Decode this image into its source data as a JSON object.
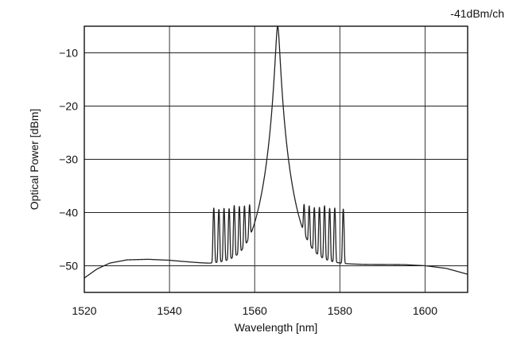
{
  "chart_data": {
    "type": "line",
    "title": "",
    "annotation": "-41dBm/ch",
    "xlabel": "Wavelength [nm]",
    "ylabel": "Optical Power [dBm]",
    "xlim": [
      1520,
      1610
    ],
    "ylim": [
      -55,
      -5
    ],
    "xticks": [
      1520,
      1540,
      1560,
      1580,
      1600
    ],
    "yticks": [
      -10,
      -20,
      -30,
      -40,
      -50
    ],
    "grid": true,
    "line_color": "#222222",
    "series": [
      {
        "name": "",
        "baseline": {
          "x": [
            1520,
            1523,
            1526,
            1530,
            1535,
            1540,
            1545,
            1549.5,
            1560,
            1565,
            1570,
            1580,
            1590,
            1595,
            1600,
            1605,
            1610
          ],
          "y": [
            -52.3,
            -50.6,
            -49.5,
            -48.9,
            -48.8,
            -49.0,
            -49.4,
            -49.8,
            -49.9,
            -49.9,
            -49.9,
            -49.9,
            -49.8,
            -49.8,
            -50.0,
            -50.5,
            -51.6
          ]
        },
        "pump": {
          "center": 1565.4,
          "peak": -5,
          "width": 0.55
        },
        "channels": {
          "level": -41,
          "peak_y": [
            -39.6,
            -39.9,
            -39.7,
            -39.8,
            -39.2,
            -39.5,
            -39.6,
            -39.8,
            -40.0,
            -39.7,
            -39.8,
            -39.6,
            -39.2,
            -39.7,
            -39.6,
            -39.8
          ],
          "x": [
            1550.4,
            1551.6,
            1552.8,
            1554.0,
            1555.2,
            1556.4,
            1557.6,
            1558.8,
            1571.6,
            1572.8,
            1574.0,
            1575.2,
            1576.4,
            1577.6,
            1578.8,
            1580.8
          ],
          "width": 0.28
        }
      }
    ]
  }
}
